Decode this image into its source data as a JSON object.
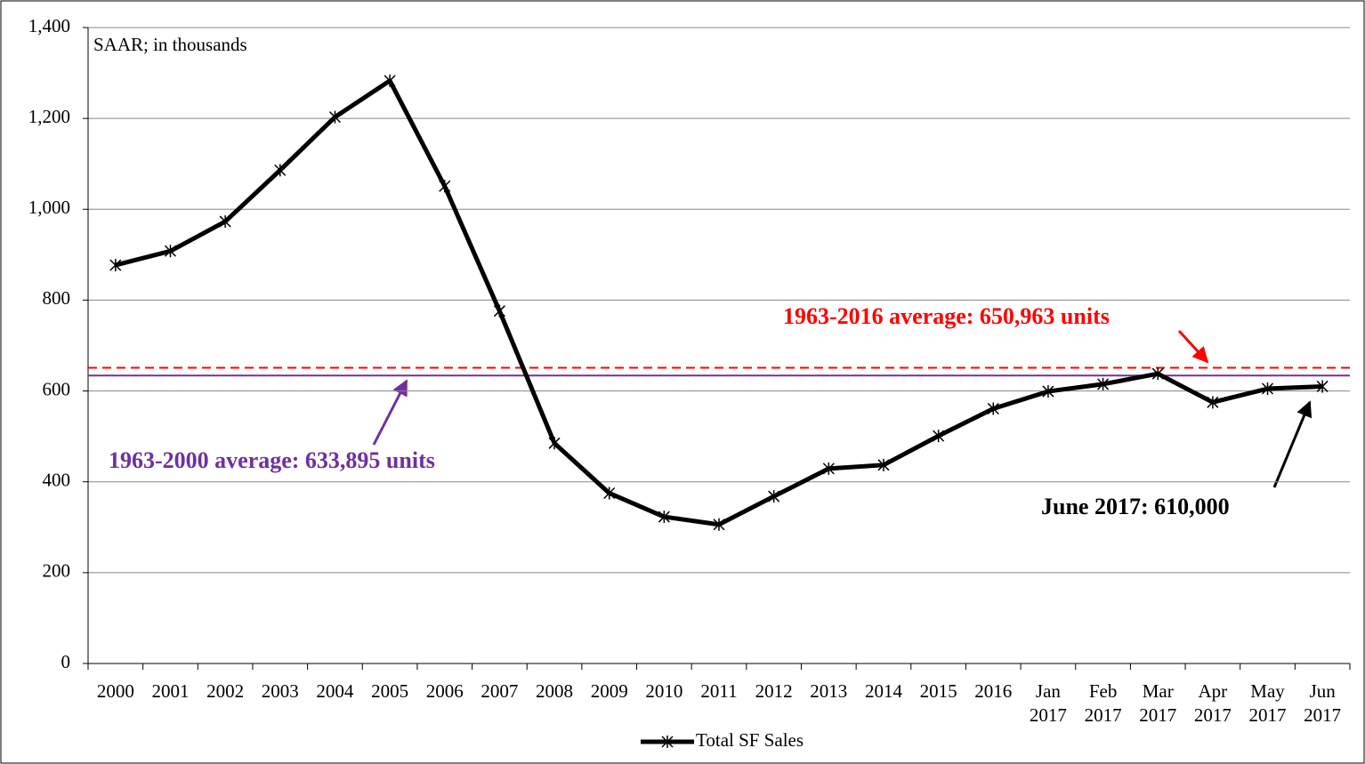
{
  "chart_data": {
    "type": "line",
    "subtitle": "SAAR; in thousands",
    "categories": [
      "2000",
      "2001",
      "2002",
      "2003",
      "2004",
      "2005",
      "2006",
      "2007",
      "2008",
      "2009",
      "2010",
      "2011",
      "2012",
      "2013",
      "2014",
      "2015",
      "2016",
      "Jan\n2017",
      "Feb\n2017",
      "Mar\n2017",
      "Apr\n2017",
      "May\n2017",
      "Jun\n2017"
    ],
    "series": [
      {
        "name": "Total SF Sales",
        "color": "#000000",
        "values": [
          877,
          908,
          973,
          1086,
          1203,
          1283,
          1051,
          776,
          485,
          375,
          323,
          306,
          368,
          429,
          437,
          501,
          561,
          599,
          615,
          638,
          575,
          605,
          610
        ]
      }
    ],
    "ylim": [
      0,
      1400
    ],
    "yticks": [
      0,
      200,
      400,
      600,
      800,
      {
        "value": 1000,
        "label": "1,000"
      },
      {
        "value": 1200,
        "label": "1,200"
      },
      {
        "value": 1400,
        "label": "1,400"
      }
    ],
    "grid": true,
    "reference_lines": [
      {
        "value": 650.963,
        "label": "1963-2016 average: 650,963 units",
        "color": "#ff0000",
        "style": "dashed"
      },
      {
        "value": 633.895,
        "label": "1963-2000 average: 633,895 units",
        "color": "#7030a0",
        "style": "solid"
      }
    ],
    "annotations": [
      {
        "text": "June 2017: 610,000"
      }
    ],
    "legend": "bottom"
  }
}
